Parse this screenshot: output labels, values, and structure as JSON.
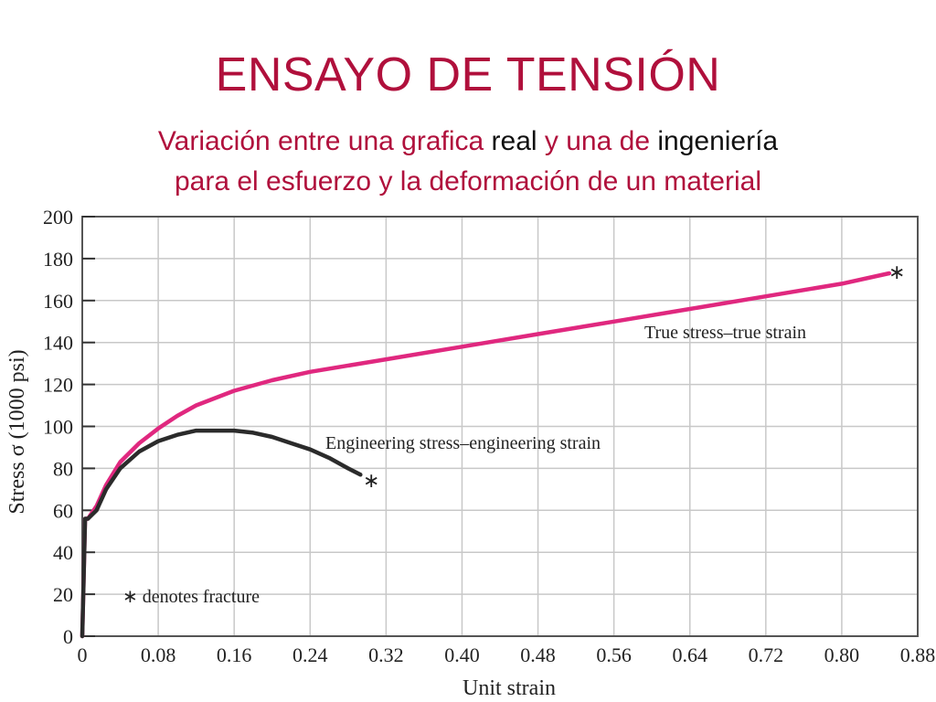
{
  "slide": {
    "title": "ENSAYO DE TENSIÓN",
    "subtitle_line1": {
      "part1": "Variación entre una grafica ",
      "part2": "real",
      "part3": " y una de ",
      "part4": "ingeniería"
    },
    "subtitle_line2": "para el esfuerzo y la deformación de un material"
  },
  "colors": {
    "title": "#b0103c",
    "true_curve": "#e0287f",
    "engineering_curve": "#2b2b2b",
    "grid": "#c8c8c8"
  },
  "chart_data": {
    "type": "line",
    "xlabel": "Unit strain",
    "ylabel": "Stress σ (1000 psi)",
    "xlim": [
      0,
      0.88
    ],
    "ylim": [
      0,
      200
    ],
    "xticks": [
      "0",
      "0.08",
      "0.16",
      "0.24",
      "0.32",
      "0.40",
      "0.48",
      "0.56",
      "0.64",
      "0.72",
      "0.80",
      "0.88"
    ],
    "yticks": [
      "0",
      "20",
      "40",
      "60",
      "80",
      "100",
      "120",
      "140",
      "160",
      "180",
      "200"
    ],
    "grid": true,
    "series": [
      {
        "name": "True stress–true strain",
        "x": [
          0,
          0.003,
          0.006,
          0.015,
          0.025,
          0.04,
          0.06,
          0.08,
          0.1,
          0.12,
          0.16,
          0.2,
          0.24,
          0.32,
          0.4,
          0.48,
          0.56,
          0.64,
          0.72,
          0.8,
          0.85
        ],
        "y": [
          0,
          56,
          56,
          62,
          72,
          83,
          92,
          99,
          105,
          110,
          117,
          122,
          126,
          132,
          138,
          144,
          150,
          156,
          162,
          168,
          173
        ]
      },
      {
        "name": "Engineering stress–engineering strain",
        "x": [
          0,
          0.003,
          0.006,
          0.015,
          0.025,
          0.04,
          0.06,
          0.08,
          0.1,
          0.12,
          0.14,
          0.16,
          0.18,
          0.2,
          0.22,
          0.24,
          0.26,
          0.28,
          0.293
        ],
        "y": [
          0,
          56,
          56,
          60,
          70,
          80,
          88,
          93,
          96,
          98,
          98,
          98,
          97,
          95,
          92,
          89,
          85,
          80,
          77
        ]
      }
    ],
    "annotations": [
      "True stress–true strain",
      "Engineering stress–engineering strain",
      "∗ denotes fracture",
      "∗",
      "∗"
    ]
  }
}
